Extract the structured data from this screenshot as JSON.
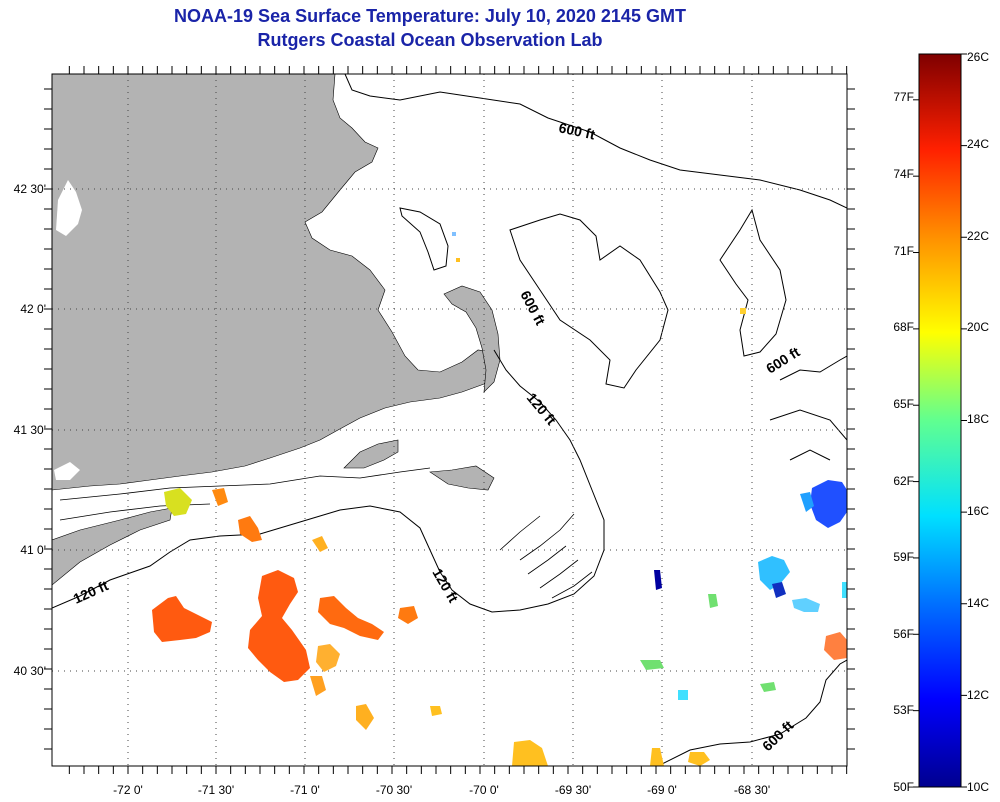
{
  "title": "NOAA-19 Sea Surface Temperature:  July 10, 2020 2145 GMT",
  "subtitle": "Rutgers Coastal Ocean Observation Lab",
  "lon_labels": [
    "-72 0'",
    "-71 30'",
    "-71 0'",
    "-70 30'",
    "-70 0'",
    "-69 30'",
    "-69 0'",
    "-68 30'"
  ],
  "lat_labels": [
    "42 30'",
    "42 0'",
    "41 30'",
    "41 0'",
    "40 30'"
  ],
  "contour_labels": [
    "600 ft",
    "600 ft",
    "600 ft",
    "600 ft",
    "120 ft",
    "120 ft",
    "120 ft"
  ],
  "colorbar": {
    "fahrenheit_labels": [
      "77F",
      "74F",
      "71F",
      "68F",
      "65F",
      "62F",
      "59F",
      "56F",
      "53F",
      "50F"
    ],
    "celsius_labels": [
      "26C",
      "24C",
      "22C",
      "20C",
      "18C",
      "16C",
      "14C",
      "12C",
      "10C"
    ],
    "range_c": [
      10,
      26
    ],
    "colors": [
      "#00008f",
      "#0000ff",
      "#0080ff",
      "#00ffff",
      "#80ff80",
      "#ffff00",
      "#ff8000",
      "#ff0000",
      "#800000"
    ]
  },
  "colors": {
    "land": "#b3b3b3",
    "title": "#1a24a8",
    "gridline": "#444444"
  }
}
